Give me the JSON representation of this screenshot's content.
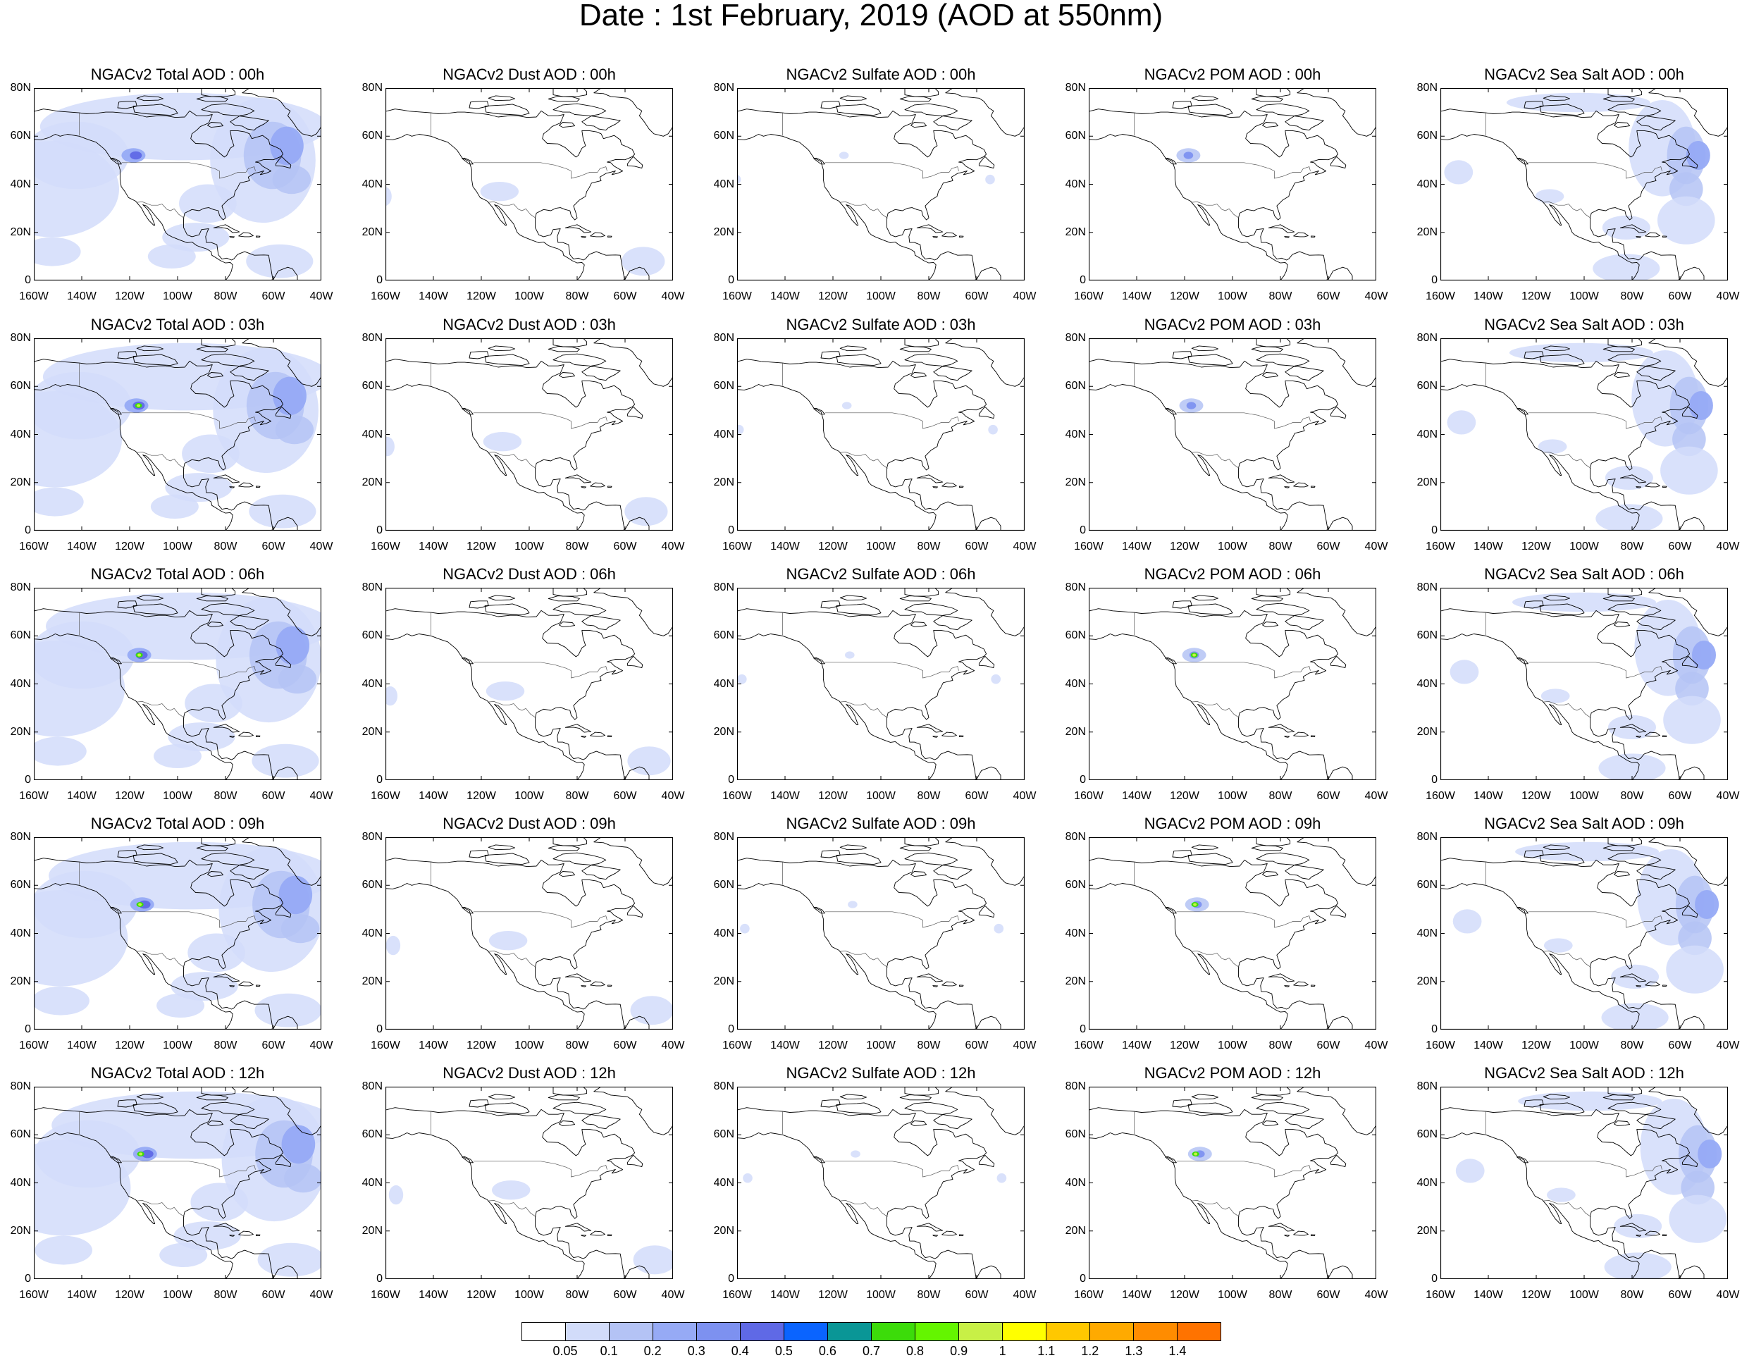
{
  "title": "Date : 1st February, 2019 (AOD at 550nm)",
  "lat_labels": [
    "80N",
    "60N",
    "40N",
    "20N",
    "0"
  ],
  "lon_labels": [
    "160W",
    "140W",
    "120W",
    "100W",
    "80W",
    "60W",
    "40W"
  ],
  "map_extent": {
    "lon": [
      -160,
      -40
    ],
    "lat": [
      0,
      80
    ]
  },
  "panels": [
    [
      "NGACv2 Total AOD : 00h",
      "NGACv2 Dust AOD : 00h",
      "NGACv2 Sulfate AOD : 00h",
      "NGACv2 POM AOD : 00h",
      "NGACv2 Sea Salt AOD : 00h"
    ],
    [
      "NGACv2 Total AOD : 03h",
      "NGACv2 Dust AOD : 03h",
      "NGACv2 Sulfate AOD : 03h",
      "NGACv2 POM AOD : 03h",
      "NGACv2 Sea Salt AOD : 03h"
    ],
    [
      "NGACv2 Total AOD : 06h",
      "NGACv2 Dust AOD : 06h",
      "NGACv2 Sulfate AOD : 06h",
      "NGACv2 POM AOD : 06h",
      "NGACv2 Sea Salt AOD : 06h"
    ],
    [
      "NGACv2 Total AOD : 09h",
      "NGACv2 Dust AOD : 09h",
      "NGACv2 Sulfate AOD : 09h",
      "NGACv2 POM AOD : 09h",
      "NGACv2 Sea Salt  AOD : 09h"
    ],
    [
      "NGACv2 Total AOD  : 12h",
      "NGACv2 Dust AOD : 12h",
      "NGACv2 Sulfate AOD : 12h",
      "NGACv2 POM  AOD : 12h",
      "NGACv2 Sea Salt  AOD : 12h"
    ]
  ],
  "colorbar": {
    "labels": [
      "0.05",
      "0.1",
      "0.2",
      "0.3",
      "0.4",
      "0.5",
      "0.6",
      "0.7",
      "0.8",
      "0.9",
      "1",
      "1.1",
      "1.2",
      "1.3",
      "1.4"
    ],
    "colors": [
      "#ffffff",
      "#d2dcfa",
      "#b4c3f5",
      "#96aaf5",
      "#7d91f0",
      "#5f69e6",
      "#0a64ff",
      "#0a9696",
      "#3cdc0a",
      "#64f500",
      "#a0f500",
      "#c8f046",
      "#ffff00",
      "#ffc800",
      "#ffaa00",
      "#ff8c00",
      "#ff7300",
      "#ff2800"
    ]
  }
}
